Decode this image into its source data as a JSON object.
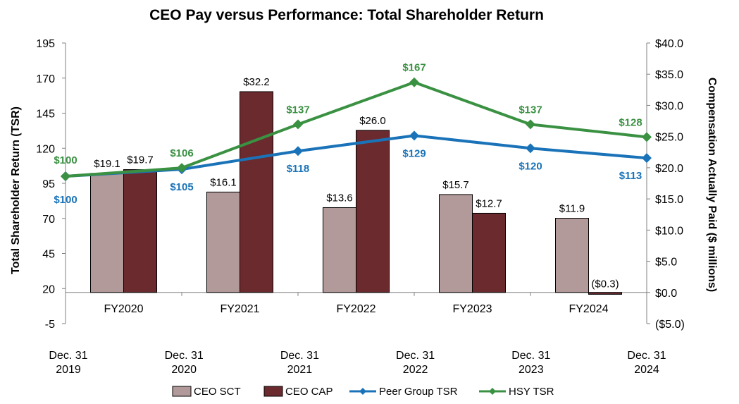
{
  "chart_data": {
    "type": "bar+line",
    "title": "CEO Pay versus Performance: Total Shareholder Return",
    "left_axis": {
      "label": "Total Shareholder Return (TSR)",
      "range": [
        -5,
        195
      ],
      "ticks": [
        -5,
        20,
        45,
        70,
        95,
        120,
        145,
        170,
        195
      ]
    },
    "right_axis": {
      "label": "Compensation Actually Paid ($ millions)",
      "range": [
        -5,
        40
      ],
      "ticks": [
        {
          "v": -5,
          "t": "($5.0)"
        },
        {
          "v": 0,
          "t": "$0.0"
        },
        {
          "v": 5,
          "t": "$5.0"
        },
        {
          "v": 10,
          "t": "$10.0"
        },
        {
          "v": 15,
          "t": "$15.0"
        },
        {
          "v": 20,
          "t": "$20.0"
        },
        {
          "v": 25,
          "t": "$25.0"
        },
        {
          "v": 30,
          "t": "$30.0"
        },
        {
          "v": 35,
          "t": "$35.0"
        },
        {
          "v": 40,
          "t": "$40.0"
        }
      ]
    },
    "categories": [
      "FY2020",
      "FY2021",
      "FY2022",
      "FY2023",
      "FY2024"
    ],
    "bar_series": [
      {
        "name": "CEO SCT",
        "color": "#b29a9a",
        "values": [
          19.1,
          16.1,
          13.6,
          15.7,
          11.9
        ],
        "labels": [
          "$19.1",
          "$16.1",
          "$13.6",
          "$15.7",
          "$11.9"
        ]
      },
      {
        "name": "CEO CAP",
        "color": "#6b2a2e",
        "values": [
          19.7,
          32.2,
          26.0,
          12.7,
          -0.3
        ],
        "labels": [
          "$19.7",
          "$32.2",
          "$26.0",
          "$12.7",
          "($0.3)"
        ]
      }
    ],
    "dates": [
      {
        "line1": "Dec. 31",
        "line2": "2019"
      },
      {
        "line1": "Dec. 31",
        "line2": "2020"
      },
      {
        "line1": "Dec. 31",
        "line2": "2021"
      },
      {
        "line1": "Dec. 31",
        "line2": "2022"
      },
      {
        "line1": "Dec. 31",
        "line2": "2023"
      },
      {
        "line1": "Dec. 31",
        "line2": "2024"
      }
    ],
    "line_series": [
      {
        "name": "Peer Group TSR",
        "color": "#1a73b8",
        "values": [
          100,
          105,
          118,
          129,
          120,
          113
        ],
        "labels": [
          "$100",
          "$105",
          "$118",
          "$129",
          "$120",
          "$113"
        ],
        "label_pos": [
          "below",
          "below",
          "below",
          "below",
          "below",
          "below"
        ]
      },
      {
        "name": "HSY TSR",
        "color": "#3a9142",
        "values": [
          100,
          106,
          137,
          167,
          137,
          128
        ],
        "labels": [
          "$100",
          "$106",
          "$137",
          "$167",
          "$137",
          "$128"
        ],
        "label_pos": [
          "above",
          "above",
          "above",
          "above",
          "above",
          "above"
        ]
      }
    ],
    "legend": [
      "CEO SCT",
      "CEO CAP",
      "Peer Group TSR",
      "HSY TSR"
    ]
  }
}
